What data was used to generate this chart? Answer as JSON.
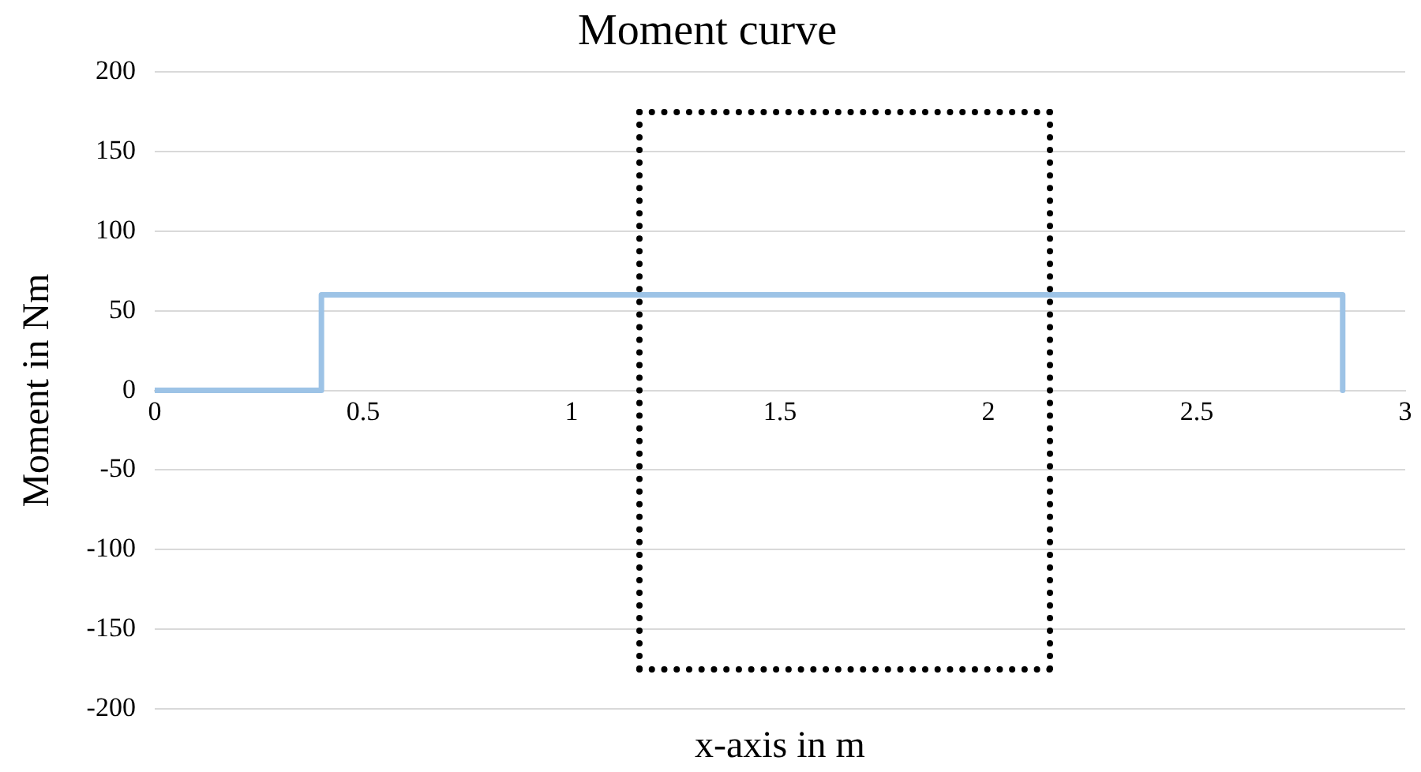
{
  "chart_data": {
    "type": "line",
    "title": "Moment curve",
    "xlabel": "x-axis in m",
    "ylabel": "Moment in Nm",
    "xlim": [
      0,
      3
    ],
    "xticks": [
      0,
      0.5,
      1,
      1.5,
      2,
      2.5,
      3
    ],
    "ylim": [
      -200,
      200
    ],
    "yticks": [
      -200,
      -150,
      -100,
      -50,
      0,
      50,
      100,
      150,
      200
    ],
    "grid": "y",
    "legend": false,
    "marker": "none",
    "series": [
      {
        "color": "#9dc3e6",
        "line_style": "solid",
        "x": [
          0,
          0.4,
          0.4,
          2.85,
          2.85
        ],
        "values": [
          0,
          0,
          60,
          60,
          0
        ]
      }
    ]
  }
}
